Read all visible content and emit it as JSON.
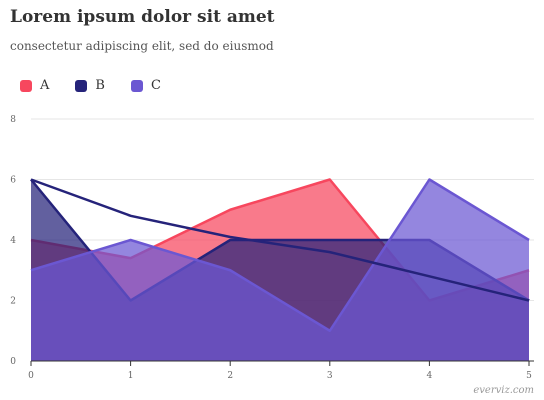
{
  "chart_data": {
    "type": "area",
    "title": "Lorem ipsum dolor sit amet",
    "subtitle": "consectetur adipiscing elit, sed do eiusmod",
    "x": [
      0,
      1,
      2,
      3,
      4,
      5
    ],
    "xlim": [
      0,
      5
    ],
    "ylim": [
      0,
      8
    ],
    "yticks": [
      0,
      2,
      4,
      6,
      8
    ],
    "xticks": [
      0,
      1,
      2,
      3,
      4,
      5
    ],
    "grid": true,
    "legend_position": "top-left",
    "series": [
      {
        "name": "A",
        "values": [
          4,
          3.4,
          5,
          6,
          2,
          3
        ],
        "color": "#f7475e"
      },
      {
        "name": "B",
        "values": [
          6,
          2,
          4,
          4,
          4,
          2
        ],
        "color": "#25237a"
      },
      {
        "name": "C",
        "values": [
          3,
          4,
          3,
          1,
          6,
          4
        ],
        "color": "#6b57d2"
      }
    ],
    "trendline": {
      "series": "B",
      "values": [
        6,
        4.8,
        4.1,
        3.6,
        2.8,
        2
      ],
      "color": "#25237a"
    },
    "credit": "everviz.com"
  }
}
